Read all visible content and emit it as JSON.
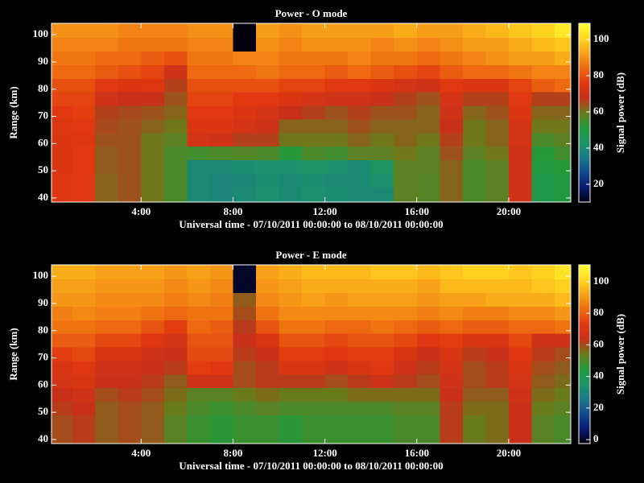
{
  "chart_data": [
    {
      "type": "heatmap",
      "title": "Power - O mode",
      "xlabel": "Universal time - 07/10/2011 00:00:00 to 08/10/2011 00:00:00",
      "ylabel": "Range (km)",
      "colorbar_label": "Signal power (dB)",
      "x_edges": [
        0.1,
        1,
        2,
        3,
        4,
        5,
        6,
        7,
        8,
        9,
        10,
        11,
        12,
        13,
        14,
        15,
        16,
        17,
        18,
        19,
        20,
        21,
        22,
        22.7
      ],
      "y_edges": [
        38.5,
        44,
        49,
        54,
        59,
        64,
        69,
        74,
        79,
        84,
        89,
        94,
        99,
        104.2
      ],
      "z": [
        [
          75,
          76,
          62,
          64,
          60,
          56,
          40,
          38,
          40,
          42,
          40,
          42,
          41,
          40,
          40,
          58,
          57,
          62,
          56,
          58,
          70,
          48,
          50
        ],
        [
          75,
          76,
          62,
          64,
          60,
          56,
          40,
          38,
          39,
          41,
          40,
          41,
          40,
          40,
          42,
          58,
          57,
          62,
          56,
          58,
          70,
          48,
          50
        ],
        [
          74,
          76,
          63,
          64,
          60,
          56,
          40,
          40,
          41,
          42,
          42,
          43,
          42,
          40,
          44,
          58,
          58,
          62,
          56,
          58,
          70,
          50,
          52
        ],
        [
          74,
          76,
          63,
          64,
          60,
          56,
          55,
          56,
          57,
          56,
          52,
          56,
          55,
          58,
          58,
          60,
          58,
          64,
          58,
          60,
          70,
          52,
          55
        ],
        [
          74,
          75,
          64,
          64,
          60,
          58,
          72,
          70,
          66,
          66,
          60,
          60,
          60,
          62,
          60,
          62,
          60,
          66,
          60,
          62,
          72,
          56,
          58
        ],
        [
          75,
          76,
          65,
          64,
          62,
          60,
          74,
          74,
          72,
          70,
          62,
          62,
          62,
          64,
          62,
          62,
          62,
          68,
          60,
          62,
          72,
          60,
          60
        ],
        [
          76,
          77,
          66,
          65,
          64,
          62,
          76,
          76,
          74,
          72,
          68,
          66,
          64,
          66,
          64,
          64,
          62,
          70,
          62,
          64,
          74,
          62,
          62
        ],
        [
          78,
          78,
          70,
          68,
          68,
          64,
          78,
          78,
          76,
          76,
          74,
          72,
          70,
          70,
          68,
          66,
          64,
          72,
          66,
          66,
          76,
          66,
          66
        ],
        [
          80,
          80,
          76,
          74,
          75,
          66,
          80,
          80,
          80,
          80,
          78,
          78,
          76,
          76,
          74,
          72,
          70,
          76,
          74,
          74,
          78,
          82,
          84
        ],
        [
          84,
          84,
          82,
          80,
          78,
          70,
          84,
          84,
          84,
          86,
          84,
          84,
          82,
          84,
          82,
          80,
          78,
          82,
          84,
          84,
          86,
          88,
          88
        ],
        [
          86,
          86,
          84,
          84,
          82,
          80,
          86,
          86,
          88,
          88,
          86,
          86,
          86,
          88,
          86,
          86,
          84,
          86,
          88,
          90,
          92,
          92,
          94
        ],
        [
          88,
          88,
          88,
          86,
          86,
          86,
          88,
          88,
          10,
          90,
          88,
          90,
          90,
          90,
          88,
          90,
          88,
          90,
          92,
          92,
          94,
          96,
          98
        ],
        [
          90,
          90,
          90,
          88,
          88,
          88,
          90,
          90,
          10,
          92,
          90,
          92,
          92,
          92,
          92,
          94,
          92,
          92,
          94,
          96,
          98,
          100,
          104
        ]
      ],
      "xlim": [
        0.1,
        22.7
      ],
      "ylim": [
        38.5,
        104.2
      ],
      "xticks": [
        {
          "value": 4,
          "label": "4:00"
        },
        {
          "value": 8,
          "label": "8:00"
        },
        {
          "value": 12,
          "label": "12:00"
        },
        {
          "value": 16,
          "label": "16:00"
        },
        {
          "value": 20,
          "label": "20:00"
        }
      ],
      "yticks": [
        40,
        50,
        60,
        70,
        80,
        90,
        100
      ],
      "clim": [
        10.2,
        108.9
      ],
      "cticks": [
        20,
        40,
        60,
        80,
        100
      ],
      "colormap": [
        "#000010",
        "#0a1a70",
        "#124a8c",
        "#1a7a88",
        "#1e9466",
        "#209a3a",
        "#6a7a1c",
        "#c8301a",
        "#e03810",
        "#ee6a10",
        "#f8a018",
        "#ffd820",
        "#ffff30"
      ]
    },
    {
      "type": "heatmap",
      "title": "Power - E mode",
      "xlabel": "Universal time - 07/10/2011 00:00:00 to 08/10/2011 00:00:00",
      "ylabel": "Range (km)",
      "colorbar_label": "Signal power (dB)",
      "x_edges": [
        0.1,
        1,
        2,
        3,
        4,
        5,
        6,
        7,
        8,
        9,
        10,
        11,
        12,
        13,
        14,
        15,
        16,
        17,
        18,
        19,
        20,
        21,
        22,
        22.7
      ],
      "y_edges": [
        38.5,
        44,
        49,
        54,
        59,
        64,
        69,
        74,
        79,
        84,
        89,
        94,
        99,
        104.2
      ],
      "z": [
        [
          60,
          62,
          58,
          60,
          58,
          52,
          48,
          46,
          48,
          48,
          46,
          48,
          48,
          48,
          48,
          50,
          50,
          62,
          54,
          56,
          64,
          52,
          50
        ],
        [
          60,
          62,
          58,
          60,
          58,
          52,
          48,
          46,
          48,
          48,
          46,
          48,
          48,
          48,
          48,
          50,
          50,
          62,
          54,
          56,
          64,
          52,
          50
        ],
        [
          62,
          64,
          58,
          60,
          58,
          54,
          50,
          48,
          50,
          52,
          50,
          50,
          50,
          50,
          50,
          52,
          52,
          62,
          56,
          56,
          64,
          54,
          52
        ],
        [
          64,
          66,
          60,
          62,
          60,
          56,
          52,
          52,
          54,
          56,
          54,
          54,
          54,
          56,
          56,
          56,
          56,
          64,
          58,
          58,
          66,
          56,
          54
        ],
        [
          68,
          70,
          64,
          64,
          62,
          58,
          66,
          66,
          60,
          62,
          62,
          62,
          60,
          62,
          66,
          62,
          60,
          66,
          60,
          62,
          68,
          58,
          56
        ],
        [
          70,
          72,
          66,
          66,
          64,
          62,
          74,
          72,
          60,
          62,
          70,
          70,
          66,
          70,
          72,
          66,
          62,
          68,
          60,
          62,
          70,
          60,
          58
        ],
        [
          74,
          76,
          70,
          70,
          66,
          64,
          76,
          76,
          62,
          64,
          74,
          74,
          72,
          74,
          74,
          70,
          64,
          70,
          62,
          64,
          72,
          62,
          60
        ],
        [
          80,
          80,
          76,
          76,
          72,
          68,
          78,
          78,
          64,
          70,
          78,
          78,
          76,
          78,
          78,
          76,
          72,
          74,
          70,
          70,
          76,
          66,
          66
        ],
        [
          84,
          84,
          82,
          82,
          78,
          74,
          82,
          80,
          62,
          78,
          84,
          84,
          82,
          82,
          84,
          82,
          80,
          82,
          80,
          80,
          82,
          82,
          84
        ],
        [
          86,
          88,
          86,
          86,
          84,
          82,
          84,
          84,
          60,
          84,
          88,
          88,
          88,
          88,
          88,
          88,
          86,
          88,
          86,
          86,
          88,
          88,
          90
        ],
        [
          90,
          90,
          88,
          88,
          88,
          86,
          88,
          86,
          58,
          88,
          90,
          92,
          90,
          92,
          92,
          92,
          90,
          92,
          92,
          94,
          94,
          94,
          96
        ],
        [
          92,
          92,
          90,
          90,
          90,
          88,
          90,
          88,
          0,
          90,
          92,
          94,
          94,
          94,
          94,
          94,
          92,
          96,
          96,
          96,
          96,
          98,
          100
        ],
        [
          94,
          94,
          92,
          92,
          92,
          90,
          92,
          90,
          0,
          92,
          94,
          96,
          96,
          96,
          98,
          98,
          96,
          98,
          100,
          100,
          98,
          100,
          104
        ]
      ],
      "xlim": [
        0.1,
        22.7
      ],
      "ylim": [
        38.5,
        104.2
      ],
      "xticks": [
        {
          "value": 4,
          "label": "4:00"
        },
        {
          "value": 8,
          "label": "8:00"
        },
        {
          "value": 12,
          "label": "12:00"
        },
        {
          "value": 16,
          "label": "16:00"
        },
        {
          "value": 20,
          "label": "20:00"
        }
      ],
      "yticks": [
        40,
        50,
        60,
        70,
        80,
        90,
        100
      ],
      "clim": [
        -2.5,
        110.7
      ],
      "cticks": [
        0,
        20,
        40,
        60,
        80,
        100
      ],
      "colormap": [
        "#000010",
        "#0a1a70",
        "#124a8c",
        "#1a7a88",
        "#1e9466",
        "#209a3a",
        "#6a7a1c",
        "#c8301a",
        "#e03810",
        "#ee6a10",
        "#f8a018",
        "#ffd820",
        "#ffff30"
      ]
    }
  ]
}
